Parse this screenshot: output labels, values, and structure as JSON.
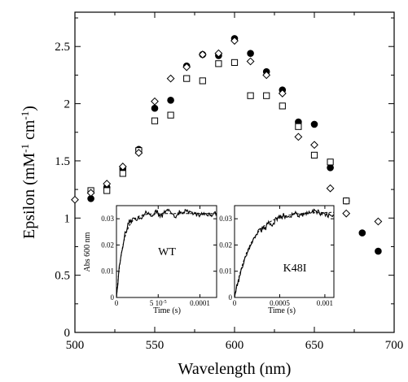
{
  "chart_data": [
    {
      "type": "scatter",
      "xlabel": "Wavelength (nm)",
      "ylabel": "Epsilon (mM-1 cm-1)",
      "xlim": [
        500,
        700
      ],
      "ylim": [
        0,
        2.8
      ],
      "xticks": [
        "500",
        "550",
        "600",
        "650",
        "700"
      ],
      "yticks": [
        "0",
        "0.5",
        "1",
        "1.5",
        "2",
        "2.5"
      ],
      "xtick_values": [
        500,
        550,
        600,
        650,
        700
      ],
      "ytick_values": [
        0,
        0.5,
        1,
        1.5,
        2,
        2.5
      ],
      "series": [
        {
          "marker": "filled-circle",
          "color": "#000000",
          "x": [
            510,
            520,
            530,
            540,
            550,
            560,
            570,
            580,
            590,
            600,
            610,
            620,
            630,
            640,
            650,
            660,
            670,
            680,
            690
          ],
          "y": [
            1.17,
            1.27,
            1.43,
            1.6,
            1.96,
            2.03,
            2.33,
            2.43,
            2.42,
            2.57,
            2.44,
            2.28,
            2.12,
            1.84,
            1.82,
            1.44,
            1.15,
            0.87,
            0.71
          ]
        },
        {
          "marker": "open-square",
          "color": "#000000",
          "x": [
            510,
            520,
            530,
            540,
            550,
            560,
            570,
            580,
            590,
            600,
            610,
            620,
            630,
            640,
            650,
            660,
            670
          ],
          "y": [
            1.24,
            1.24,
            1.39,
            1.59,
            1.85,
            1.9,
            2.22,
            2.2,
            2.35,
            2.36,
            2.07,
            2.07,
            1.98,
            1.8,
            1.55,
            1.49,
            1.15
          ]
        },
        {
          "marker": "open-diamond",
          "color": "#000000",
          "x": [
            500,
            510,
            520,
            530,
            540,
            550,
            560,
            570,
            580,
            590,
            600,
            610,
            620,
            630,
            640,
            650,
            660,
            670,
            690
          ],
          "y": [
            1.16,
            1.22,
            1.3,
            1.45,
            1.57,
            2.02,
            2.22,
            2.32,
            2.43,
            2.44,
            2.55,
            2.37,
            2.25,
            2.09,
            1.71,
            1.64,
            1.26,
            1.04,
            0.97
          ]
        }
      ]
    },
    {
      "type": "line",
      "label": "WT",
      "ylabel": "Abs 600 nm",
      "xlabel": "Time (s)",
      "xlim": [
        0,
        0.00012
      ],
      "ylim": [
        0,
        0.035
      ],
      "xticks": [
        "0",
        "5 10",
        "0.0001"
      ],
      "xticks_exp": "-5",
      "xtick_values": [
        0,
        5e-05,
        0.0001
      ],
      "yticks": [
        "0",
        "0.01",
        "0.02",
        "0.03"
      ],
      "ytick_values": [
        0,
        0.01,
        0.02,
        0.03
      ],
      "rise_time_constant": 8e-06,
      "plateau": 0.032
    },
    {
      "type": "line",
      "label": "K48I",
      "ylabel": "",
      "xlabel": "Time (s)",
      "xlim": [
        0,
        0.0011
      ],
      "ylim": [
        0,
        0.035
      ],
      "xticks": [
        "0",
        "0.0005",
        "0.001"
      ],
      "xtick_values": [
        0,
        0.0005,
        0.001
      ],
      "yticks": [
        "0",
        "0.01",
        "0.02",
        "0.03"
      ],
      "ytick_values": [
        0,
        0.01,
        0.02,
        0.03
      ],
      "rise_time_constant": 0.00018,
      "plateau": 0.0325
    }
  ]
}
